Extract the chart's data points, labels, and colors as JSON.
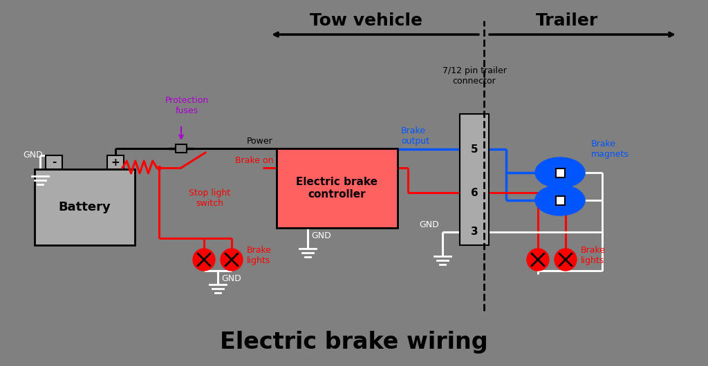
{
  "bg_color": "#808080",
  "title": "Electric brake wiring",
  "tow_vehicle_label": "Tow vehicle",
  "trailer_label": "Trailer",
  "connector_label": "7/12 pin trailer\nconnector",
  "brake_magnets_label": "Brake\nmagnets",
  "brake_output_label": "Brake\noutput",
  "protection_fuses_label": "Protection\nfuses",
  "stop_light_switch_label": "Stop light\nswitch",
  "brake_on_label": "Brake on",
  "power_label": "Power",
  "gnd_label": "GND",
  "battery_label": "Battery",
  "controller_label": "Electric brake\ncontroller",
  "brake_lights_label": "Brake\nlights",
  "pin5_label": "5",
  "pin6_label": "6",
  "pin3_label": "3",
  "white": "#ffffff",
  "black": "#000000",
  "red": "#ff0000",
  "blue": "#0055ff",
  "purple": "#aa00cc",
  "gray_bat": "#aaaaaa",
  "ctrl_color": "#ff6060",
  "conn_color": "#aaaaaa"
}
